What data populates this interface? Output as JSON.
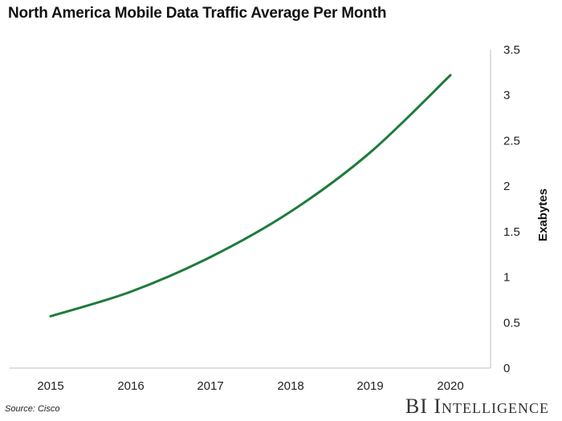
{
  "chart_data": {
    "type": "line",
    "title": "North America Mobile Data Traffic Average Per Month",
    "xlabel": "",
    "ylabel": "Exabytes",
    "x": [
      "2015",
      "2016",
      "2017",
      "2018",
      "2019",
      "2020"
    ],
    "series": [
      {
        "name": "Exabytes",
        "color": "#1e7b3c",
        "values": [
          0.57,
          0.84,
          1.22,
          1.72,
          2.37,
          3.22
        ]
      }
    ],
    "ylim": [
      0,
      3.5
    ],
    "yticks": [
      "0",
      "0.5",
      "1",
      "1.5",
      "2",
      "2.5",
      "3",
      "3.5"
    ],
    "y_axis_side": "right",
    "grid": false
  },
  "footer": {
    "source": "Source: Cisco",
    "brand": "BI Intelligence"
  }
}
